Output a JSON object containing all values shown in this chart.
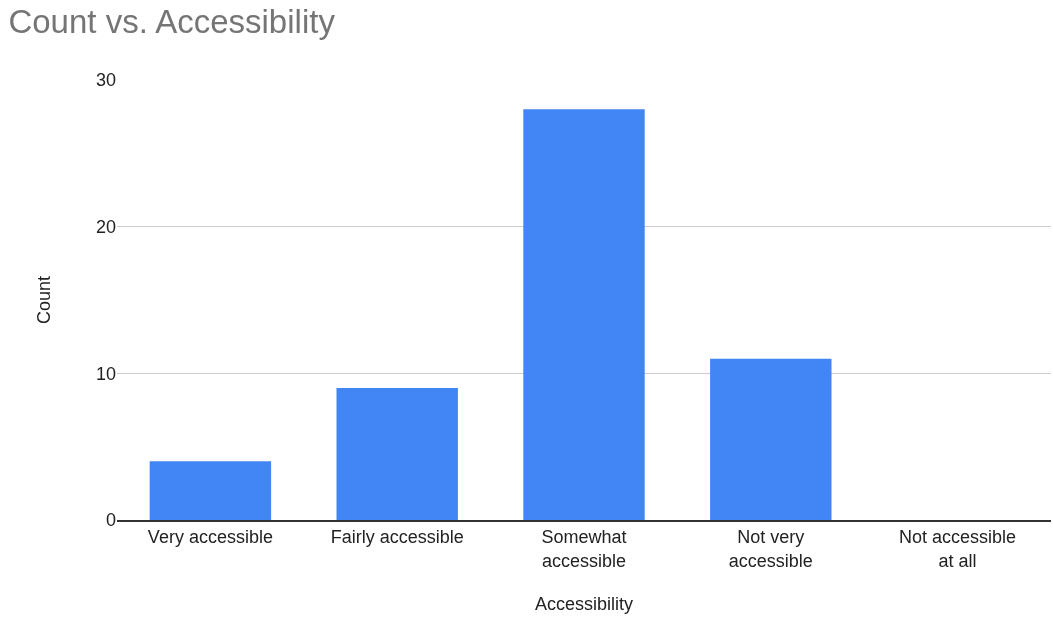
{
  "chart_data": {
    "type": "bar",
    "title": "Count vs. Accessibility",
    "xlabel": "Accessibility",
    "ylabel": "Count",
    "categories": [
      "Very accessible",
      "Fairly accessible",
      "Somewhat accessible",
      "Not very accessible",
      "Not accessible at all"
    ],
    "values": [
      4,
      9,
      28,
      11,
      0
    ],
    "color": "#4285f4",
    "ylim": [
      0,
      30
    ],
    "yticks": [
      0,
      10,
      20,
      30
    ],
    "grid": "y"
  }
}
